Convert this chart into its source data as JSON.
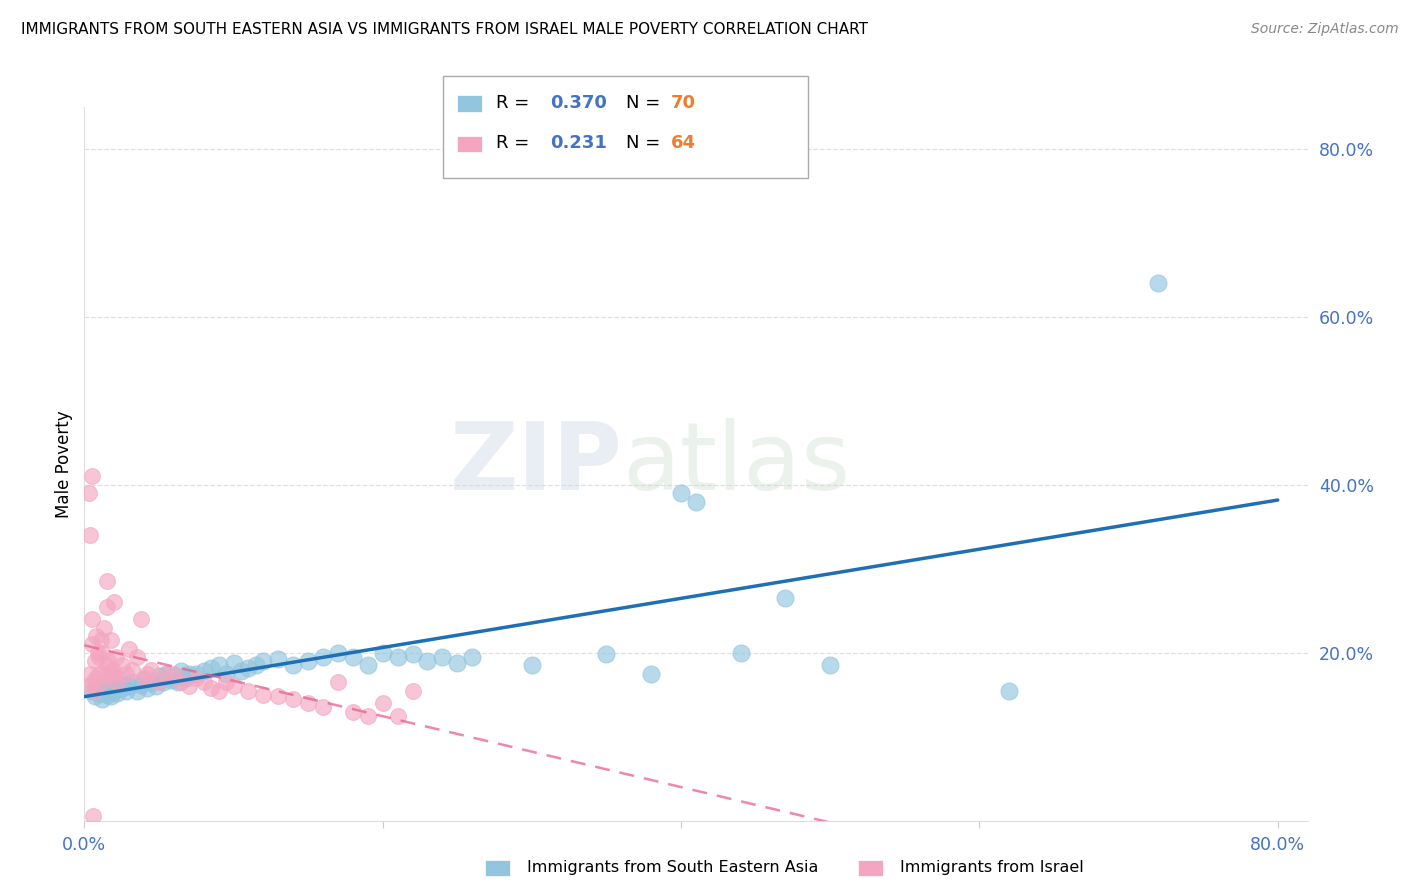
{
  "title": "IMMIGRANTS FROM SOUTH EASTERN ASIA VS IMMIGRANTS FROM ISRAEL MALE POVERTY CORRELATION CHART",
  "source": "Source: ZipAtlas.com",
  "ylabel": "Male Poverty",
  "xlim": [
    0.0,
    0.82
  ],
  "ylim": [
    0.0,
    0.85
  ],
  "x_ticks": [
    0.0,
    0.2,
    0.4,
    0.6,
    0.8
  ],
  "x_tick_labels": [
    "0.0%",
    "",
    "",
    "",
    "80.0%"
  ],
  "y_ticks_right": [
    0.2,
    0.4,
    0.6,
    0.8
  ],
  "y_tick_labels_right": [
    "20.0%",
    "40.0%",
    "60.0%",
    "80.0%"
  ],
  "legend_r1": "0.370",
  "legend_n1": "70",
  "legend_r2": "0.231",
  "legend_n2": "64",
  "color_blue": "#92c5de",
  "color_pink": "#f4a6c0",
  "color_blue_line": "#1f6fb5",
  "color_pink_line": "#e8608a",
  "color_text_blue": "#4472C4",
  "color_text_n_blue": "#ED7D31",
  "color_axis_label": "#4472C4",
  "color_grid": "#d9d9d9",
  "background": "#ffffff",
  "watermark_zip": "ZIP",
  "watermark_atlas": "atlas",
  "blue_scatter_x": [
    0.005,
    0.007,
    0.008,
    0.01,
    0.01,
    0.012,
    0.013,
    0.015,
    0.015,
    0.016,
    0.017,
    0.018,
    0.02,
    0.02,
    0.022,
    0.022,
    0.025,
    0.026,
    0.028,
    0.03,
    0.032,
    0.035,
    0.038,
    0.04,
    0.042,
    0.045,
    0.048,
    0.05,
    0.053,
    0.055,
    0.058,
    0.06,
    0.063,
    0.065,
    0.068,
    0.07,
    0.075,
    0.08,
    0.085,
    0.09,
    0.095,
    0.1,
    0.105,
    0.11,
    0.115,
    0.12,
    0.13,
    0.14,
    0.15,
    0.16,
    0.17,
    0.18,
    0.19,
    0.2,
    0.21,
    0.22,
    0.23,
    0.24,
    0.25,
    0.26,
    0.3,
    0.35,
    0.38,
    0.4,
    0.41,
    0.44,
    0.47,
    0.5,
    0.62,
    0.72
  ],
  "blue_scatter_y": [
    0.155,
    0.148,
    0.16,
    0.152,
    0.162,
    0.145,
    0.158,
    0.15,
    0.168,
    0.155,
    0.162,
    0.148,
    0.155,
    0.165,
    0.152,
    0.17,
    0.158,
    0.162,
    0.155,
    0.16,
    0.165,
    0.155,
    0.162,
    0.168,
    0.158,
    0.165,
    0.16,
    0.172,
    0.165,
    0.175,
    0.168,
    0.172,
    0.165,
    0.178,
    0.17,
    0.175,
    0.175,
    0.178,
    0.182,
    0.185,
    0.175,
    0.188,
    0.178,
    0.182,
    0.185,
    0.19,
    0.192,
    0.185,
    0.19,
    0.195,
    0.2,
    0.195,
    0.185,
    0.2,
    0.195,
    0.198,
    0.19,
    0.195,
    0.188,
    0.195,
    0.185,
    0.198,
    0.175,
    0.39,
    0.38,
    0.2,
    0.265,
    0.185,
    0.155,
    0.64
  ],
  "pink_scatter_x": [
    0.003,
    0.004,
    0.005,
    0.005,
    0.006,
    0.007,
    0.007,
    0.008,
    0.008,
    0.009,
    0.01,
    0.01,
    0.011,
    0.012,
    0.012,
    0.013,
    0.014,
    0.015,
    0.015,
    0.016,
    0.017,
    0.018,
    0.019,
    0.02,
    0.02,
    0.021,
    0.022,
    0.025,
    0.028,
    0.03,
    0.032,
    0.035,
    0.038,
    0.04,
    0.042,
    0.045,
    0.05,
    0.055,
    0.06,
    0.065,
    0.07,
    0.075,
    0.08,
    0.085,
    0.09,
    0.095,
    0.1,
    0.11,
    0.12,
    0.13,
    0.14,
    0.15,
    0.16,
    0.17,
    0.18,
    0.19,
    0.2,
    0.21,
    0.22,
    0.015,
    0.003,
    0.004,
    0.005,
    0.006
  ],
  "pink_scatter_y": [
    0.16,
    0.175,
    0.21,
    0.24,
    0.165,
    0.155,
    0.19,
    0.17,
    0.22,
    0.2,
    0.175,
    0.195,
    0.215,
    0.165,
    0.2,
    0.23,
    0.175,
    0.185,
    0.255,
    0.19,
    0.175,
    0.215,
    0.18,
    0.175,
    0.26,
    0.195,
    0.165,
    0.185,
    0.175,
    0.205,
    0.18,
    0.195,
    0.24,
    0.17,
    0.175,
    0.18,
    0.165,
    0.175,
    0.175,
    0.165,
    0.16,
    0.17,
    0.165,
    0.158,
    0.155,
    0.165,
    0.16,
    0.155,
    0.15,
    0.148,
    0.145,
    0.14,
    0.135,
    0.165,
    0.13,
    0.125,
    0.14,
    0.125,
    0.155,
    0.285,
    0.39,
    0.34,
    0.41,
    0.005
  ]
}
